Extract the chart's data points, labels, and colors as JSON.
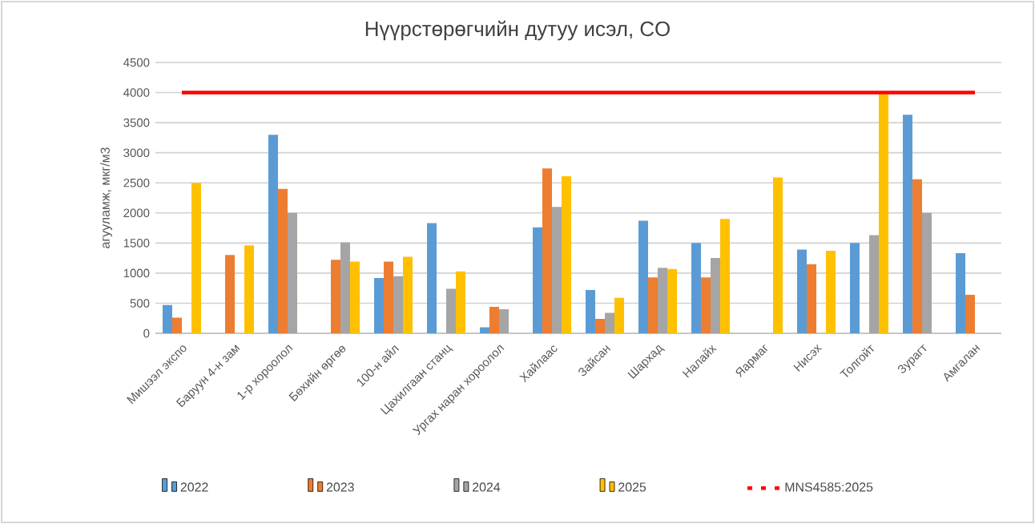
{
  "chart_data": {
    "type": "bar",
    "title": "Нүүрстөрөгчийн дутуу исэл, CO",
    "ylabel": "агууламж, мкг/м3",
    "categories": [
      "Мишээл экспо",
      "Баруун 4-н зам",
      "1-р хороолол",
      "Бөхийн өргөө",
      "100-н айл",
      "Цахилгаан станц",
      "Ургах наран хороолол",
      "Хайлаас",
      "Зайсан",
      "Шархад",
      "Налайх",
      "Яармаг",
      "Нисэх",
      "Толгойт",
      "Зурагт",
      "Амгалан"
    ],
    "series": [
      {
        "name": "2022",
        "color": "#5b9bd5",
        "values": [
          470,
          null,
          3300,
          null,
          920,
          1830,
          100,
          1760,
          720,
          1870,
          1500,
          null,
          1390,
          1500,
          3630,
          1330
        ]
      },
      {
        "name": "2023",
        "color": "#ed7d31",
        "values": [
          260,
          1300,
          2400,
          1220,
          1190,
          null,
          440,
          2740,
          240,
          930,
          930,
          null,
          1150,
          null,
          2560,
          640
        ]
      },
      {
        "name": "2024",
        "color": "#a5a5a5",
        "values": [
          null,
          null,
          2000,
          1510,
          950,
          740,
          400,
          2100,
          340,
          1090,
          1250,
          null,
          null,
          1630,
          2000,
          null
        ]
      },
      {
        "name": "2025",
        "color": "#ffc000",
        "values": [
          2500,
          1460,
          null,
          1190,
          1270,
          1030,
          null,
          2610,
          590,
          1070,
          1900,
          2590,
          1370,
          3980,
          null,
          null
        ]
      },
      {
        "name": "MNS4585:2025",
        "color": "#ff0000",
        "type": "line",
        "values": [
          4000,
          4000,
          4000,
          4000,
          4000,
          4000,
          4000,
          4000,
          4000,
          4000,
          4000,
          4000,
          4000,
          4000,
          4000,
          4000
        ]
      }
    ],
    "ylim": [
      0,
      4500
    ],
    "yticks": [
      0,
      500,
      1000,
      1500,
      2000,
      2500,
      3000,
      3500,
      4000,
      4500
    ],
    "grid": "y",
    "legend": "bottom"
  }
}
